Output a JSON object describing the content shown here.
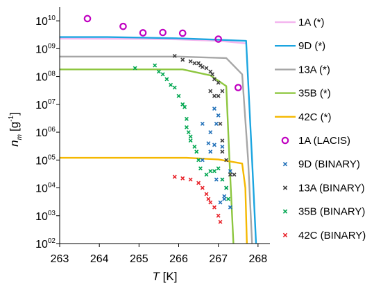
{
  "chart_data": {
    "type": "scatter",
    "x_axis": {
      "label_symbol": "T",
      "label_unit": "[K]",
      "range": [
        263,
        268.3
      ],
      "ticks": [
        "263",
        "264",
        "265",
        "266",
        "267",
        "268"
      ]
    },
    "y_axis": {
      "label_symbol": "n",
      "label_subscript": "m",
      "label_unit_open": "[g",
      "label_unit_exponent": "-1",
      "label_unit_close": "]",
      "scale": "log",
      "range_exponent": [
        2,
        10.4
      ],
      "tick_base": "10",
      "tick_exponents": [
        "10",
        "09",
        "08",
        "07",
        "06",
        "05",
        "04",
        "03",
        "02"
      ],
      "grid": false
    },
    "legend_position": "right",
    "series": [
      {
        "name": "1A (*)",
        "kind": "line",
        "color": "#f4b6ef",
        "points": [
          [
            263,
            2300000000.0
          ],
          [
            265,
            2250000000.0
          ],
          [
            266,
            2150000000.0
          ],
          [
            267,
            1900000000.0
          ],
          [
            267.7,
            1550000000.0
          ]
        ]
      },
      {
        "name": "9D (*)",
        "kind": "line",
        "color": "#1ba5e0",
        "points": [
          [
            263,
            2600000000.0
          ],
          [
            264.2,
            2600000000.0
          ],
          [
            265,
            2500000000.0
          ],
          [
            266,
            2350000000.0
          ],
          [
            267,
            2100000000.0
          ],
          [
            267.7,
            1900000000.0
          ],
          [
            267.85,
            100000.0
          ],
          [
            267.95,
            100
          ]
        ]
      },
      {
        "name": "13A (*)",
        "kind": "line",
        "color": "#a6a6a6",
        "points": [
          [
            263,
            520000000.0
          ],
          [
            265,
            520000000.0
          ],
          [
            266,
            520000000.0
          ],
          [
            267.2,
            460000000.0
          ],
          [
            267.6,
            120000000.0
          ],
          [
            267.75,
            100000.0
          ],
          [
            267.85,
            100
          ]
        ]
      },
      {
        "name": "35B (*)",
        "kind": "line",
        "color": "#8dc63f",
        "points": [
          [
            263,
            180000000.0
          ],
          [
            265,
            180000000.0
          ],
          [
            266.1,
            180000000.0
          ],
          [
            266.8,
            110000000.0
          ],
          [
            267.2,
            45000000.0
          ],
          [
            267.28,
            100000.0
          ],
          [
            267.38,
            100
          ]
        ]
      },
      {
        "name": "42C (*)",
        "kind": "line",
        "color": "#f5b800",
        "points": [
          [
            263,
            120000.0
          ],
          [
            265,
            120000.0
          ],
          [
            266.2,
            120000.0
          ],
          [
            267,
            105000.0
          ],
          [
            267.6,
            75000.0
          ],
          [
            267.68,
            10000.0
          ],
          [
            267.72,
            100
          ]
        ]
      },
      {
        "name": "1A (LACIS)",
        "kind": "circle",
        "color": "#c000c0",
        "points": [
          [
            263.7,
            12000000000.0
          ],
          [
            264.6,
            6300000000.0
          ],
          [
            265.1,
            3700000000.0
          ],
          [
            265.6,
            3800000000.0
          ],
          [
            266.1,
            3600000000.0
          ],
          [
            267.0,
            2200000000.0
          ],
          [
            267.5,
            40000000.0
          ]
        ]
      },
      {
        "name": "9D (BINARY)",
        "kind": "x",
        "color": "#1f6fb8",
        "points": [
          [
            266.6,
            2000000.0
          ],
          [
            266.8,
            1000000.0
          ],
          [
            266.9,
            7000000.0
          ],
          [
            267.0,
            4000000.0
          ],
          [
            266.95,
            2000000.0
          ],
          [
            266.6,
            100000.0
          ],
          [
            266.75,
            400000.0
          ],
          [
            266.9,
            350000.0
          ],
          [
            266.95,
            20000.0
          ],
          [
            267.05,
            3000.0
          ],
          [
            267.1,
            20000.0
          ],
          [
            267.15,
            5000.0
          ],
          [
            267.1,
            300000.0
          ],
          [
            267.15,
            4000.0
          ],
          [
            267.2,
            10000.0
          ],
          [
            267.3,
            2000.0
          ],
          [
            267.3,
            40000.0
          ],
          [
            266.8,
            200000.0
          ]
        ]
      },
      {
        "name": "13A (BINARY)",
        "kind": "x",
        "color": "#404040",
        "points": [
          [
            265.9,
            550000000.0
          ],
          [
            266.1,
            400000000.0
          ],
          [
            266.3,
            350000000.0
          ],
          [
            266.4,
            300000000.0
          ],
          [
            266.5,
            300000000.0
          ],
          [
            266.55,
            250000000.0
          ],
          [
            266.6,
            220000000.0
          ],
          [
            266.7,
            200000000.0
          ],
          [
            266.8,
            150000000.0
          ],
          [
            266.85,
            120000000.0
          ],
          [
            266.9,
            80000000.0
          ],
          [
            267.0,
            60000000.0
          ],
          [
            266.8,
            30000000.0
          ],
          [
            267.0,
            20000000.0
          ],
          [
            267.05,
            2000000.0
          ],
          [
            267.1,
            500000.0
          ],
          [
            267.1,
            200000.0
          ],
          [
            267.2,
            100000.0
          ],
          [
            267.3,
            30000.0
          ],
          [
            267.4,
            30000.0
          ],
          [
            266.9,
            20000000.0
          ],
          [
            267.1,
            30000000.0
          ]
        ]
      },
      {
        "name": "35B (BINARY)",
        "kind": "x",
        "color": "#00a650",
        "points": [
          [
            264.9,
            200000000.0
          ],
          [
            265.4,
            250000000.0
          ],
          [
            265.5,
            150000000.0
          ],
          [
            265.6,
            120000000.0
          ],
          [
            265.7,
            80000000.0
          ],
          [
            265.8,
            50000000.0
          ],
          [
            265.9,
            40000000.0
          ],
          [
            266.0,
            20000000.0
          ],
          [
            266.1,
            10000000.0
          ],
          [
            266.15,
            8000000.0
          ],
          [
            266.2,
            3000000.0
          ],
          [
            266.25,
            1000000.0
          ],
          [
            266.3,
            500000.0
          ],
          [
            266.4,
            300000.0
          ],
          [
            266.45,
            200000.0
          ],
          [
            266.5,
            100000.0
          ],
          [
            266.55,
            50000.0
          ],
          [
            266.7,
            30000.0
          ],
          [
            266.8,
            40000.0
          ],
          [
            266.9,
            40000.0
          ],
          [
            267.0,
            50000.0
          ],
          [
            267.1,
            20000.0
          ],
          [
            267.2,
            10000.0
          ],
          [
            267.25,
            4000.0
          ],
          [
            266.2,
            1500000.0
          ],
          [
            266.3,
            700000.0
          ]
        ]
      },
      {
        "name": "42C (BINARY)",
        "kind": "x",
        "color": "#e8232a",
        "points": [
          [
            265.9,
            25000.0
          ],
          [
            266.1,
            22000.0
          ],
          [
            266.3,
            20000.0
          ],
          [
            266.5,
            15000.0
          ],
          [
            266.6,
            10000.0
          ],
          [
            266.7,
            6000.0
          ],
          [
            266.75,
            4000.0
          ],
          [
            266.8,
            3000.0
          ],
          [
            266.9,
            2000.0
          ],
          [
            267.0,
            1000.0
          ],
          [
            267.05,
            600
          ]
        ]
      }
    ]
  }
}
